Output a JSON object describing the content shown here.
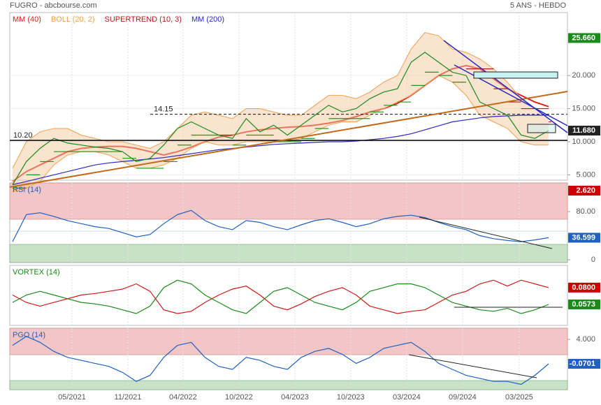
{
  "header": {
    "title": "FUGRO - abcbourse.com",
    "period": "5 ANS - HEBDO"
  },
  "chart_data": [
    {
      "type": "line",
      "color": "#1a8a1a",
      "values": [
        3.5,
        7,
        9,
        10.5,
        9.8,
        9.5,
        9.2,
        9,
        8.5,
        7,
        7.5,
        9.5,
        12,
        13,
        12,
        11,
        10.5,
        13.5,
        11.5,
        12.5,
        11,
        12.5,
        14,
        15.5,
        14.5,
        15,
        16.5,
        17.5,
        18,
        22,
        23.5,
        22,
        20.5,
        20,
        16,
        15,
        14,
        11,
        10.5,
        11.68
      ],
      "series": [
        {
          "name": "MM (40)",
          "color": "#e0201b",
          "values": [
            4,
            5.5,
            6.5,
            7.5,
            8.5,
            9,
            9.2,
            9.3,
            9.3,
            9,
            8.5,
            8,
            8.5,
            9.2,
            10,
            10.7,
            11,
            11.5,
            11.8,
            12,
            12.2,
            12.3,
            12.5,
            12.8,
            13.2,
            13.8,
            14.5,
            15,
            15.8,
            17,
            18.5,
            20,
            21,
            21.5,
            21,
            19.5,
            18,
            17,
            16,
            15.3
          ]
        },
        {
          "name": "BOLL (20, 2)",
          "color": "#f0a050",
          "upper": [
            6,
            10,
            11.5,
            12,
            12,
            11,
            10.5,
            10,
            10,
            9.5,
            9,
            10,
            12,
            14,
            14.5,
            14,
            13.5,
            15,
            15,
            14.5,
            14,
            14,
            15.5,
            17,
            17,
            16.5,
            17.5,
            19,
            20,
            24,
            26.5,
            26,
            24,
            23.5,
            22.5,
            21,
            19,
            16.5,
            15,
            13.5
          ],
          "lower": [
            2.5,
            3,
            4,
            6.5,
            8,
            8.5,
            8.5,
            8,
            7,
            6,
            6,
            6.5,
            7.5,
            9,
            10,
            9.5,
            9.5,
            10,
            10,
            10,
            10,
            10.5,
            11.5,
            12.5,
            13,
            13,
            14,
            15,
            16,
            17,
            18.5,
            20,
            19,
            17,
            14,
            13,
            12,
            10,
            9.5,
            9.5
          ]
        },
        {
          "name": "SUPERTREND (10, 3)",
          "color": "#b81818",
          "step": true,
          "values": [
            3,
            5,
            7,
            8.5,
            8.5,
            8.5,
            8.5,
            8.5,
            7.5,
            6,
            6,
            7,
            9.5,
            11,
            11,
            11,
            9.5,
            11,
            11,
            10,
            10,
            10.5,
            12,
            13.5,
            13.5,
            13.5,
            14.5,
            15.5,
            16,
            18.5,
            20.5,
            20,
            19,
            21,
            21,
            18,
            16,
            15,
            15,
            13
          ]
        },
        {
          "name": "MM (200)",
          "color": "#2a2ac0",
          "values": [
            3.5,
            4,
            4.5,
            5,
            5.5,
            6,
            6.5,
            6.8,
            7,
            7.2,
            7.4,
            7.6,
            7.9,
            8.2,
            8.5,
            8.8,
            9,
            9.2,
            9.4,
            9.6,
            9.7,
            9.8,
            9.9,
            10,
            10,
            10.1,
            10.3,
            10.5,
            10.8,
            11.2,
            11.8,
            12.4,
            13,
            13.3,
            13.6,
            13.8,
            13.9,
            14,
            14,
            14
          ]
        }
      ],
      "ylim": [
        4.2,
        29.5
      ],
      "yticks": [
        {
          "value": 5,
          "label": "5.000"
        },
        {
          "value": 10,
          "label": "10.000"
        },
        {
          "value": 15,
          "label": "15.000"
        },
        {
          "value": 20,
          "label": "20.000"
        }
      ],
      "grid": true,
      "annotations": [
        {
          "value": 10.2,
          "label": "10.20",
          "dashed": false
        },
        {
          "value": 14.15,
          "label": "14.15",
          "dashed": true
        }
      ],
      "markers": [
        {
          "value": 25.66,
          "label": "25.660",
          "color": "#1a8a1a"
        },
        {
          "value": 11.68,
          "label": "11.680",
          "color": "#222222"
        },
        {
          "value": 2.62,
          "label": "2.620",
          "color": "#cc0000"
        }
      ]
    },
    {
      "type": "line",
      "title": "RSI (14)",
      "color": "#2060c0",
      "values": [
        30,
        75,
        78,
        72,
        65,
        60,
        55,
        52,
        45,
        38,
        42,
        60,
        75,
        82,
        65,
        55,
        50,
        65,
        62,
        55,
        50,
        58,
        65,
        68,
        62,
        55,
        60,
        68,
        72,
        74,
        70,
        62,
        55,
        50,
        40,
        35,
        32,
        30,
        33,
        36.599
      ],
      "ylim": [
        -4.6,
        127.5
      ],
      "yticks": [
        0,
        {
          "value": 80,
          "label": "80.00"
        }
      ],
      "markers": [
        {
          "value": 36.599,
          "label": "36.599",
          "color": "#2060c0"
        }
      ]
    },
    {
      "type": "line",
      "title": "VORTEX (14)",
      "title_color": "#1a8a1a",
      "series": [
        {
          "color": "#1a8a1a",
          "values": [
            0.06,
            0.07,
            0.075,
            0.07,
            0.065,
            0.06,
            0.058,
            0.055,
            0.05,
            0.045,
            0.055,
            0.08,
            0.09,
            0.085,
            0.07,
            0.06,
            0.05,
            0.045,
            0.06,
            0.075,
            0.08,
            0.07,
            0.06,
            0.055,
            0.05,
            0.06,
            0.075,
            0.08,
            0.085,
            0.085,
            0.08,
            0.07,
            0.06,
            0.055,
            0.05,
            0.048,
            0.052,
            0.045,
            0.05,
            0.0573
          ]
        },
        {
          "color": "#cc1a1a",
          "values": [
            0.07,
            0.06,
            0.055,
            0.06,
            0.065,
            0.07,
            0.072,
            0.075,
            0.078,
            0.085,
            0.075,
            0.05,
            0.045,
            0.048,
            0.06,
            0.07,
            0.078,
            0.082,
            0.07,
            0.055,
            0.05,
            0.058,
            0.068,
            0.075,
            0.08,
            0.07,
            0.055,
            0.05,
            0.045,
            0.048,
            0.05,
            0.06,
            0.07,
            0.075,
            0.085,
            0.09,
            0.082,
            0.09,
            0.085,
            0.08
          ]
        }
      ],
      "ylim": [
        0.029,
        0.11
      ],
      "markers": [
        {
          "value": 0.08,
          "label": "0.0800",
          "color": "#cc0000"
        },
        {
          "value": 0.0573,
          "label": "0.0573",
          "color": "#1a8a1a"
        }
      ]
    },
    {
      "type": "line",
      "title": "PGO (14)",
      "color": "#2060c0",
      "values": [
        3,
        4.5,
        3.5,
        2,
        1,
        0.5,
        0,
        -0.5,
        -1.5,
        -3,
        -2,
        1,
        3,
        3.5,
        1,
        -0.5,
        -1,
        1,
        0.5,
        -0.5,
        -1,
        1,
        2,
        2.5,
        1.5,
        0,
        1,
        2.5,
        3,
        3.5,
        2,
        0,
        -1,
        -2,
        -2.5,
        -3,
        -3,
        -3.5,
        -2,
        -0.0701
      ],
      "ylim": [
        -4.37,
        5.86
      ],
      "yticks": [
        {
          "value": 4,
          "label": "4.000"
        }
      ],
      "markers": [
        {
          "value": -0.0701,
          "label": "-0.0701",
          "color": "#2060c0"
        }
      ],
      "xlim": [
        0,
        39
      ],
      "xticks": [
        {
          "value": 4.32,
          "label": "05/2021"
        },
        {
          "value": 8.39,
          "label": "11/2021"
        },
        {
          "value": 12.4,
          "label": "04/2022"
        },
        {
          "value": 16.47,
          "label": "10/2022"
        },
        {
          "value": 20.54,
          "label": "04/2023"
        },
        {
          "value": 24.6,
          "label": "10/2023"
        },
        {
          "value": 28.67,
          "label": "03/2024"
        },
        {
          "value": 32.74,
          "label": "09/2024"
        },
        {
          "value": 36.86,
          "label": "03/2025"
        }
      ]
    }
  ]
}
